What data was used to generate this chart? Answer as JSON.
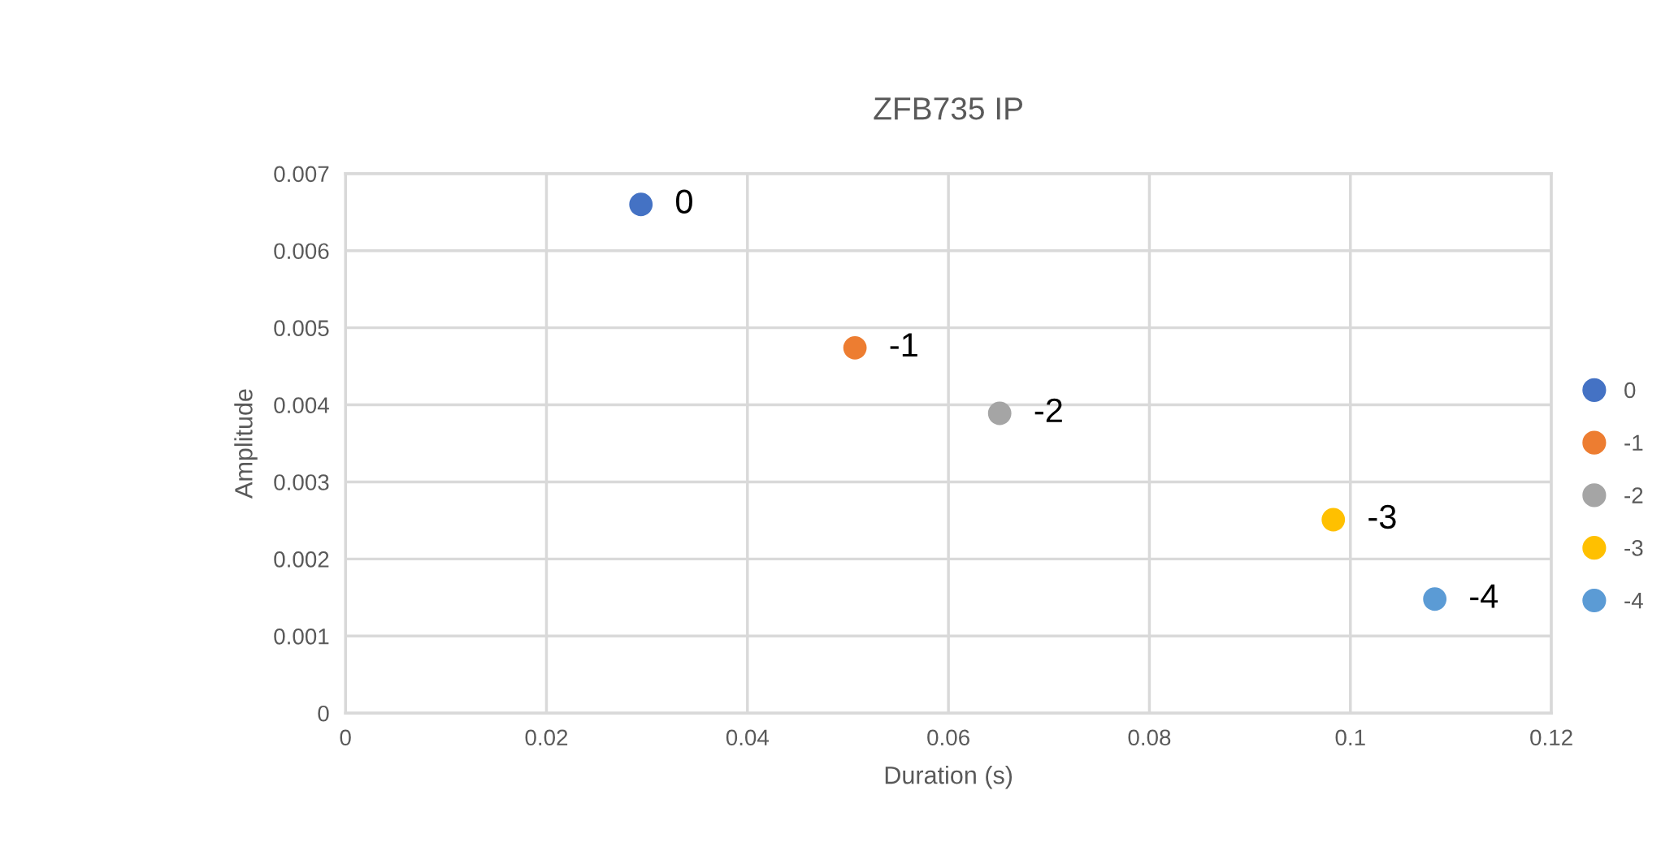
{
  "chart_data": {
    "type": "scatter",
    "title": "ZFB735 IP",
    "xlabel": "Duration (s)",
    "ylabel": "Amplitude",
    "series": [
      {
        "name": "0",
        "color": "#4472c4",
        "x": [
          0.0294
        ],
        "values": [
          0.0066
        ]
      },
      {
        "name": "-1",
        "color": "#ed7d31",
        "x": [
          0.0507
        ],
        "values": [
          0.00474
        ]
      },
      {
        "name": "-2",
        "color": "#a5a5a5",
        "x": [
          0.0651
        ],
        "values": [
          0.00389
        ]
      },
      {
        "name": "-3",
        "color": "#ffc000",
        "x": [
          0.0983
        ],
        "values": [
          0.00251
        ]
      },
      {
        "name": "-4",
        "color": "#5b9bd5",
        "x": [
          0.1084
        ],
        "values": [
          0.00148
        ]
      }
    ],
    "xlim": [
      0,
      0.12
    ],
    "xticks": [
      0,
      0.02,
      0.04,
      0.06,
      0.08,
      0.1,
      0.12
    ],
    "ylim": [
      0,
      0.007
    ],
    "yticks": [
      0,
      0.001,
      0.002,
      0.003,
      0.004,
      0.005,
      0.006,
      0.007
    ],
    "grid": true,
    "legend": "right",
    "marker": "circle"
  }
}
